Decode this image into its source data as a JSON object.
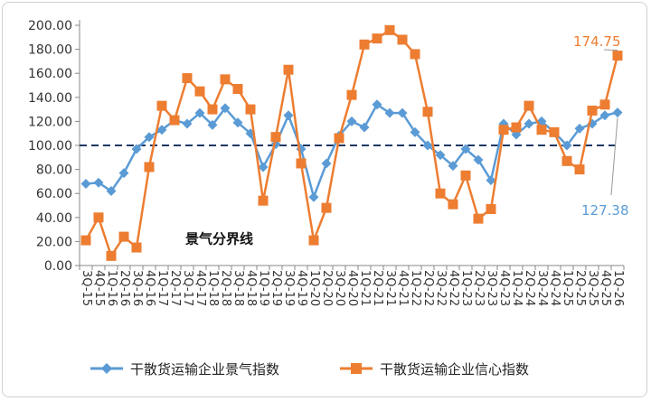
{
  "chart_data": {
    "type": "line",
    "title": "",
    "xlabel": "",
    "ylabel": "",
    "ylim": [
      0,
      200
    ],
    "yticks": [
      "0.00",
      "20.00",
      "40.00",
      "60.00",
      "80.00",
      "100.00",
      "120.00",
      "140.00",
      "160.00",
      "180.00",
      "200.00"
    ],
    "grid": false,
    "legend_position": "bottom",
    "reference_line": {
      "value": 100,
      "label": "景气分界线",
      "style": "dashed"
    },
    "x": [
      "3Q15",
      "4Q15",
      "1Q16",
      "2Q16",
      "3Q16",
      "4Q16",
      "1Q17",
      "2Q17",
      "3Q17",
      "4Q17",
      "1Q18",
      "2Q18",
      "3Q18",
      "4Q18",
      "1Q19",
      "2Q19",
      "3Q19",
      "4Q19",
      "1Q20",
      "2Q20",
      "3Q20",
      "4Q20",
      "1Q21",
      "2Q21",
      "3Q21",
      "4Q21",
      "1Q22",
      "2Q22",
      "3Q22",
      "4Q22",
      "1Q23",
      "2Q23",
      "3Q23",
      "4Q23",
      "1Q24",
      "2Q24",
      "3Q24",
      "4Q24",
      "1Q25",
      "2Q25",
      "3Q25",
      "4Q25",
      "1Q26"
    ],
    "x_tick_labels": [
      "3Q-15",
      "4Q-15",
      "1Q-16",
      "2Q-16",
      "3Q-16",
      "4Q-16",
      "1Q-17",
      "2Q-17",
      "3Q-17",
      "4Q-17",
      "1Q-18",
      "2Q-18",
      "3Q-18",
      "4Q-18",
      "1Q-19",
      "2Q-19",
      "3Q-19",
      "4Q-19",
      "1Q-20",
      "2Q-20",
      "3Q-20",
      "4Q-20",
      "1Q-21",
      "2Q-21",
      "3Q-21",
      "4Q-21",
      "1Q-22",
      "2Q-22",
      "3Q-22",
      "4Q-22",
      "1Q-23",
      "2Q-23",
      "3Q-23",
      "4Q-23",
      "1Q-24",
      "2Q-24",
      "3Q-24",
      "4Q-24",
      "1Q-25",
      "2Q-25",
      "3Q-25",
      "4Q-25",
      "1Q-26"
    ],
    "series": [
      {
        "name": "干散货运输企业景气指数",
        "color": "#5B9BD5",
        "marker": "diamond",
        "values": [
          68,
          69,
          62,
          77,
          97,
          107,
          113,
          121,
          118,
          127,
          117,
          131,
          119,
          110,
          82,
          101,
          125,
          97,
          57,
          85,
          108,
          120,
          115,
          134,
          127,
          127,
          111,
          100,
          92,
          83,
          97,
          88,
          71,
          118,
          109,
          118,
          120,
          111,
          100,
          114,
          118,
          125,
          127.38
        ]
      },
      {
        "name": "干散货运输企业信心指数",
        "color": "#ED7D31",
        "marker": "square",
        "values": [
          21,
          40,
          8,
          24,
          15,
          82,
          133,
          121,
          156,
          145,
          130,
          155,
          147,
          130,
          54,
          107,
          163,
          85,
          21,
          48,
          106,
          142,
          184,
          189,
          196,
          188,
          176,
          128,
          60,
          51,
          75,
          39,
          47,
          113,
          115,
          133,
          113,
          111,
          87,
          80,
          129,
          134,
          174.75
        ]
      }
    ],
    "value_labels": [
      {
        "series": 1,
        "index": 42,
        "text": "174.75"
      },
      {
        "series": 0,
        "index": 42,
        "text": "127.38"
      }
    ]
  }
}
